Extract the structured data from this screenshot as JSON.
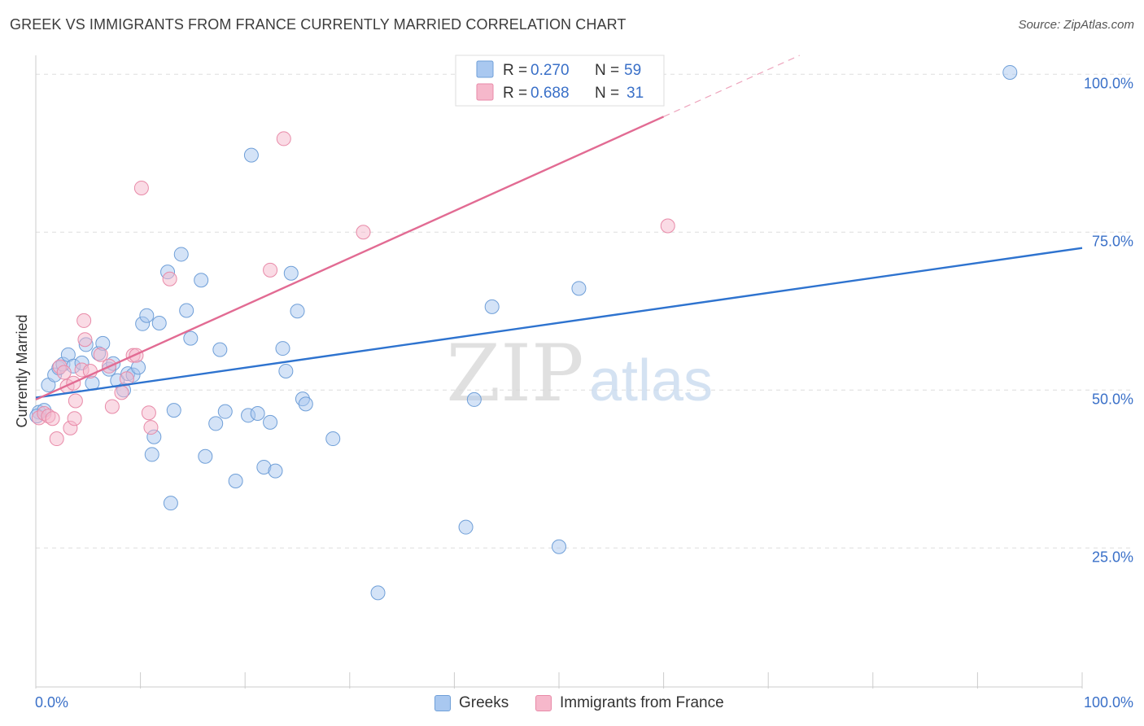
{
  "title": "GREEK VS IMMIGRANTS FROM FRANCE CURRENTLY MARRIED CORRELATION CHART",
  "source": "Source: ZipAtlas.com",
  "watermark": {
    "zip": "ZIP",
    "atlas": "atlas"
  },
  "colors": {
    "blue_fill": "#a9c8f0",
    "blue_stroke": "#6f9fd8",
    "blue_line": "#2e73cf",
    "pink_fill": "#f6b8cb",
    "pink_stroke": "#e88aa8",
    "pink_line": "#e26b93",
    "tick_text": "#3a70c8",
    "grid": "#dddddd"
  },
  "legend_top": [
    {
      "r_label": "R =",
      "r_value": "0.270",
      "n_label": "N =",
      "n_value": "59",
      "color": "blue"
    },
    {
      "r_label": "R =",
      "r_value": "0.688",
      "n_label": "N =",
      "n_value": "31",
      "color": "pink"
    }
  ],
  "legend_bottom": [
    {
      "label": "Greeks",
      "color": "blue"
    },
    {
      "label": "Immigrants from France",
      "color": "pink"
    }
  ],
  "chart_data": {
    "type": "scatter",
    "title": "GREEK VS IMMIGRANTS FROM FRANCE CURRENTLY MARRIED CORRELATION CHART",
    "xlabel": "",
    "ylabel": "Currently Married",
    "xlim": [
      0,
      100
    ],
    "ylim": [
      3,
      103
    ],
    "x_tick_labels": [
      "0.0%",
      "100.0%"
    ],
    "y_ticks": [
      25,
      50,
      75,
      100
    ],
    "y_tick_labels": [
      "25.0%",
      "50.0%",
      "75.0%",
      "100.0%"
    ],
    "grid": true,
    "legend_placement": "top-center",
    "series": [
      {
        "name": "Greeks",
        "color": "blue",
        "R": 0.27,
        "N": 59,
        "trend": {
          "x": [
            0,
            100
          ],
          "y": [
            48.8,
            72.5
          ],
          "dashed_from": null
        },
        "points": [
          {
            "x": 0.3,
            "y": 46.5
          },
          {
            "x": 0.8,
            "y": 46.8
          },
          {
            "x": 1.2,
            "y": 50.8
          },
          {
            "x": 1.8,
            "y": 52.4
          },
          {
            "x": 2.2,
            "y": 53.5
          },
          {
            "x": 2.6,
            "y": 54.1
          },
          {
            "x": 3.1,
            "y": 55.6
          },
          {
            "x": 3.6,
            "y": 53.8
          },
          {
            "x": 4.4,
            "y": 54.3
          },
          {
            "x": 4.8,
            "y": 57.2
          },
          {
            "x": 5.4,
            "y": 51.1
          },
          {
            "x": 6.0,
            "y": 55.8
          },
          {
            "x": 6.4,
            "y": 57.4
          },
          {
            "x": 7.0,
            "y": 53.3
          },
          {
            "x": 7.4,
            "y": 54.2
          },
          {
            "x": 7.8,
            "y": 51.5
          },
          {
            "x": 8.4,
            "y": 50.0
          },
          {
            "x": 8.8,
            "y": 52.6
          },
          {
            "x": 9.3,
            "y": 52.4
          },
          {
            "x": 9.8,
            "y": 53.6
          },
          {
            "x": 10.2,
            "y": 60.5
          },
          {
            "x": 10.6,
            "y": 61.8
          },
          {
            "x": 11.3,
            "y": 42.6
          },
          {
            "x": 11.1,
            "y": 39.8
          },
          {
            "x": 11.8,
            "y": 60.6
          },
          {
            "x": 12.6,
            "y": 68.7
          },
          {
            "x": 12.9,
            "y": 32.1
          },
          {
            "x": 13.2,
            "y": 46.8
          },
          {
            "x": 13.9,
            "y": 71.5
          },
          {
            "x": 14.4,
            "y": 62.6
          },
          {
            "x": 14.8,
            "y": 58.2
          },
          {
            "x": 15.8,
            "y": 67.4
          },
          {
            "x": 16.2,
            "y": 39.5
          },
          {
            "x": 17.2,
            "y": 44.7
          },
          {
            "x": 17.6,
            "y": 56.4
          },
          {
            "x": 18.1,
            "y": 46.6
          },
          {
            "x": 19.1,
            "y": 35.6
          },
          {
            "x": 20.3,
            "y": 46.0
          },
          {
            "x": 20.6,
            "y": 87.2
          },
          {
            "x": 21.2,
            "y": 46.3
          },
          {
            "x": 21.8,
            "y": 37.8
          },
          {
            "x": 22.4,
            "y": 44.9
          },
          {
            "x": 22.9,
            "y": 37.2
          },
          {
            "x": 23.6,
            "y": 56.6
          },
          {
            "x": 23.9,
            "y": 53.0
          },
          {
            "x": 24.4,
            "y": 68.5
          },
          {
            "x": 25.0,
            "y": 62.5
          },
          {
            "x": 25.5,
            "y": 48.6
          },
          {
            "x": 25.8,
            "y": 47.8
          },
          {
            "x": 28.4,
            "y": 42.3
          },
          {
            "x": 32.7,
            "y": 17.9
          },
          {
            "x": 41.1,
            "y": 28.3
          },
          {
            "x": 41.9,
            "y": 48.5
          },
          {
            "x": 43.6,
            "y": 63.2
          },
          {
            "x": 50.0,
            "y": 25.2
          },
          {
            "x": 51.9,
            "y": 66.1
          },
          {
            "x": 56.3,
            "y": 100.8
          },
          {
            "x": 93.1,
            "y": 100.3
          },
          {
            "x": 0.1,
            "y": 45.9
          }
        ]
      },
      {
        "name": "Immigrants from France",
        "color": "pink",
        "R": 0.688,
        "N": 31,
        "trend": {
          "x": [
            0,
            73.0
          ],
          "y": [
            48.5,
            103
          ],
          "dashed_from": 60.0
        },
        "points": [
          {
            "x": 0.3,
            "y": 45.6
          },
          {
            "x": 0.8,
            "y": 46.3
          },
          {
            "x": 1.2,
            "y": 45.9
          },
          {
            "x": 1.6,
            "y": 45.5
          },
          {
            "x": 2.0,
            "y": 42.3
          },
          {
            "x": 2.3,
            "y": 53.7
          },
          {
            "x": 2.7,
            "y": 52.8
          },
          {
            "x": 3.0,
            "y": 50.6
          },
          {
            "x": 3.3,
            "y": 44.0
          },
          {
            "x": 3.6,
            "y": 51.1
          },
          {
            "x": 3.7,
            "y": 45.5
          },
          {
            "x": 3.8,
            "y": 48.3
          },
          {
            "x": 4.4,
            "y": 53.2
          },
          {
            "x": 4.7,
            "y": 58.0
          },
          {
            "x": 4.6,
            "y": 61.0
          },
          {
            "x": 5.2,
            "y": 53.0
          },
          {
            "x": 6.2,
            "y": 55.6
          },
          {
            "x": 7.0,
            "y": 53.8
          },
          {
            "x": 7.3,
            "y": 47.4
          },
          {
            "x": 8.2,
            "y": 49.6
          },
          {
            "x": 8.7,
            "y": 51.8
          },
          {
            "x": 9.3,
            "y": 55.5
          },
          {
            "x": 9.6,
            "y": 55.5
          },
          {
            "x": 10.1,
            "y": 82.0
          },
          {
            "x": 10.8,
            "y": 46.4
          },
          {
            "x": 11.0,
            "y": 44.1
          },
          {
            "x": 12.8,
            "y": 67.6
          },
          {
            "x": 22.4,
            "y": 69.0
          },
          {
            "x": 23.7,
            "y": 89.8
          },
          {
            "x": 31.3,
            "y": 75.0
          },
          {
            "x": 60.4,
            "y": 76.0
          }
        ]
      }
    ]
  }
}
